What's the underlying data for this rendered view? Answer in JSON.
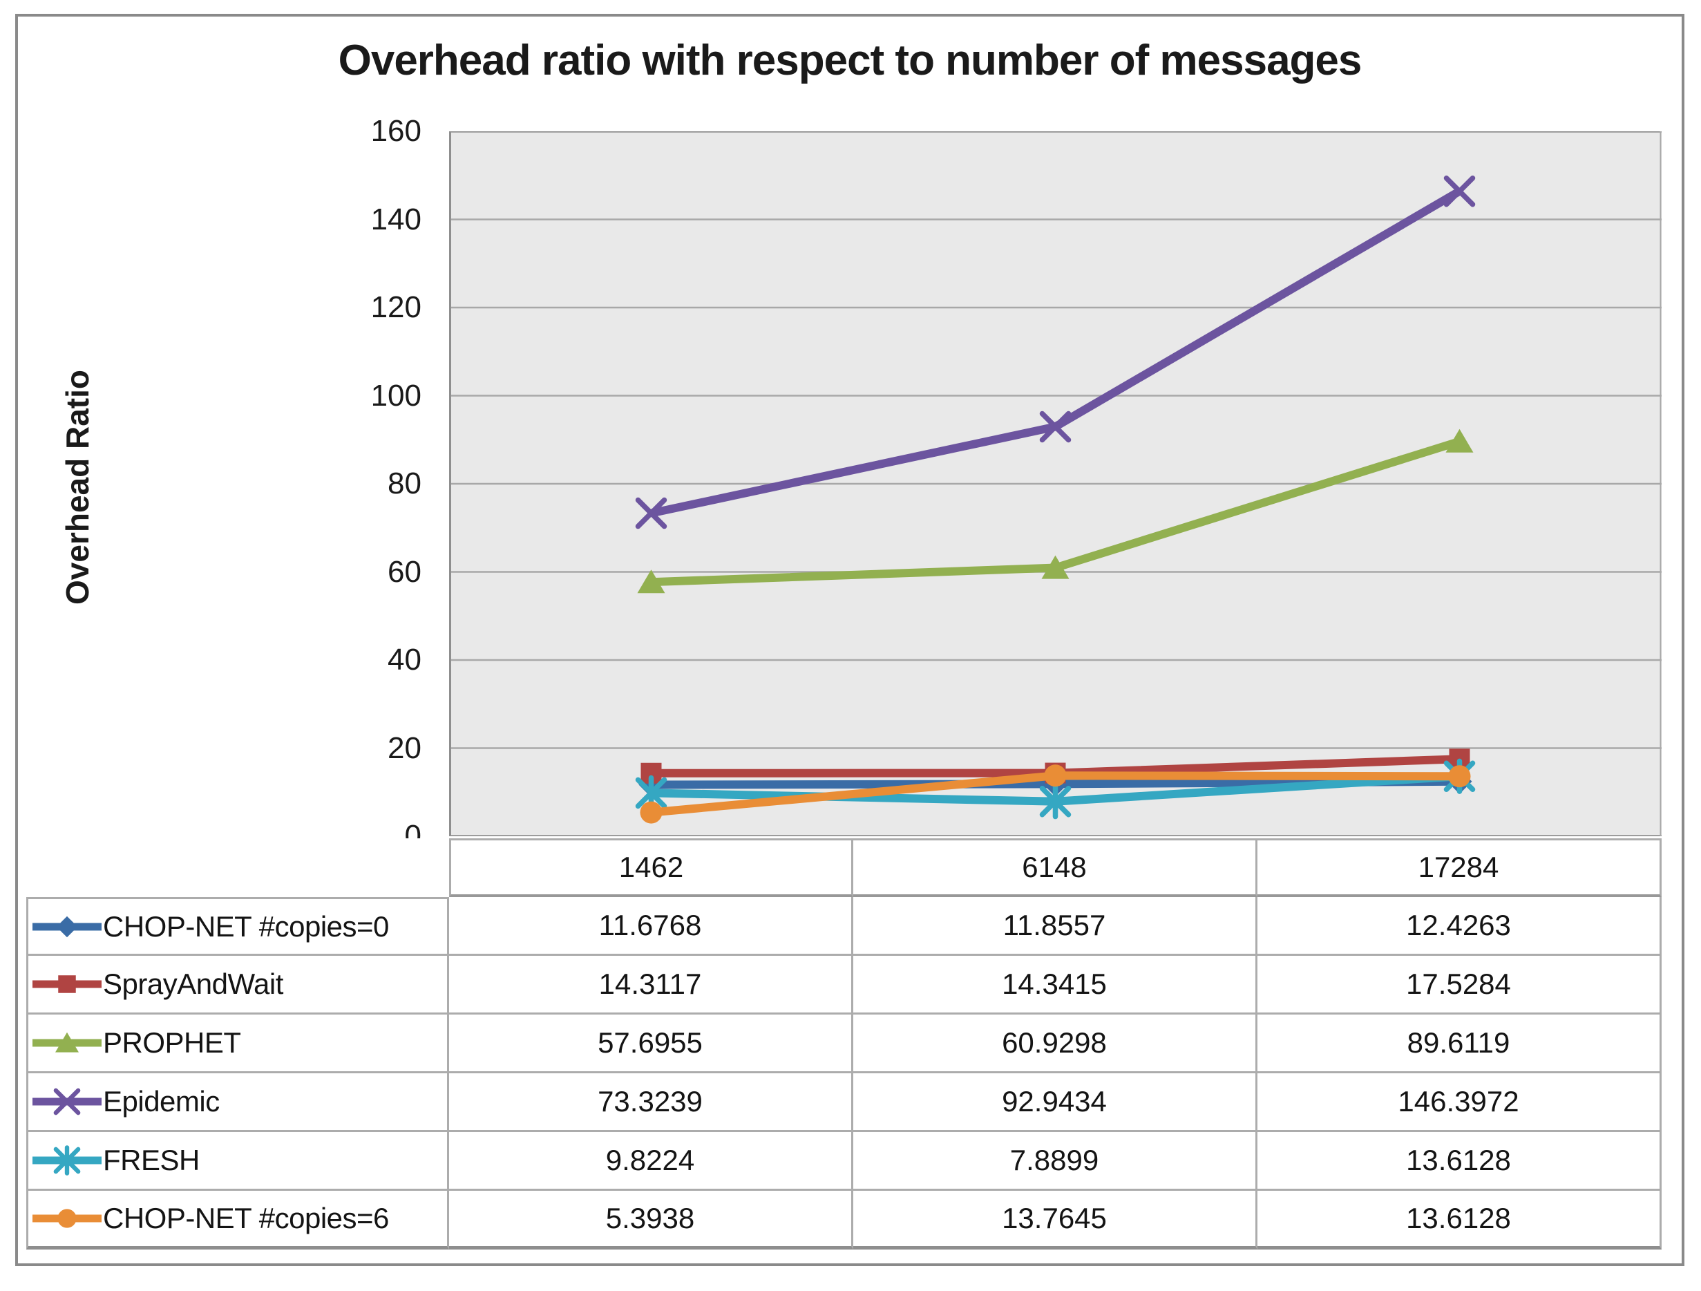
{
  "title": "Overhead ratio with respect to number of messages",
  "y_axis_label": "Overhead Ratio",
  "colors": {
    "plot_bg": "#e9e9e9",
    "gridline": "#a8a8a8",
    "axis_line": "#8f8f8f",
    "frame_border": "#8a8a8a",
    "table_border": "#acacac",
    "text": "#1a1a1a"
  },
  "chart_data": {
    "type": "line",
    "title": "Overhead ratio with respect to number of messages",
    "xlabel": "",
    "ylabel": "Overhead Ratio",
    "categories": [
      "1462",
      "6148",
      "17284"
    ],
    "ylim": [
      0,
      160
    ],
    "yticks": [
      0,
      20,
      40,
      60,
      80,
      100,
      120,
      140,
      160
    ],
    "grid": true,
    "legend_position": "table-left",
    "value_decimals": 4,
    "series": [
      {
        "name": "CHOP-NET #copies=0",
        "marker": "diamond",
        "color": "#3a6ca6",
        "values": [
          11.6768,
          11.8557,
          12.4263
        ]
      },
      {
        "name": "SprayAndWait",
        "marker": "square",
        "color": "#b04442",
        "values": [
          14.3117,
          14.3415,
          17.5284
        ]
      },
      {
        "name": "PROPHET",
        "marker": "triangle",
        "color": "#92b050",
        "values": [
          57.6955,
          60.9298,
          89.6119
        ]
      },
      {
        "name": "Epidemic",
        "marker": "x",
        "color": "#6c549f",
        "values": [
          73.3239,
          92.9434,
          146.3972
        ]
      },
      {
        "name": "FRESH",
        "marker": "asterisk",
        "color": "#35a7c2",
        "values": [
          9.8224,
          7.8899,
          13.6128
        ]
      },
      {
        "name": "CHOP-NET #copies=6",
        "marker": "circle",
        "color": "#e98d36",
        "values": [
          5.3938,
          13.7645,
          13.6128
        ]
      }
    ]
  }
}
